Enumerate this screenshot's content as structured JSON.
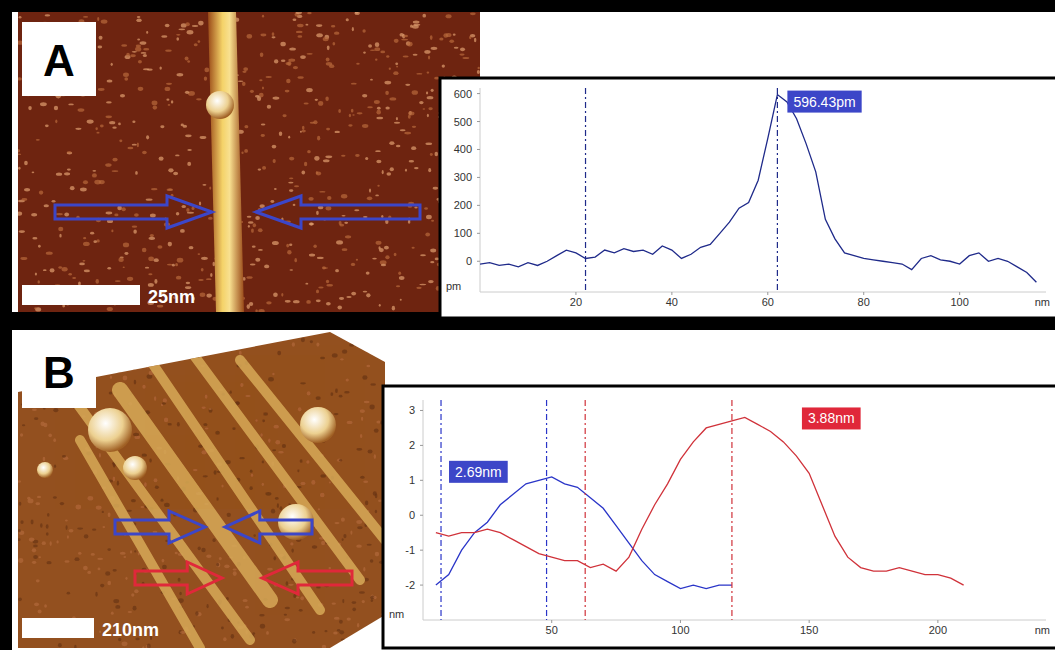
{
  "chart_data": [
    {
      "type": "line",
      "panel": "A",
      "scale_bar": "25nm",
      "x_label": "nm",
      "y_label": "pm",
      "xlim": [
        0,
        118
      ],
      "ylim": [
        -110,
        620
      ],
      "xticks": [
        20,
        40,
        60,
        80,
        100
      ],
      "yticks": [
        0,
        100,
        200,
        300,
        400,
        500,
        600
      ],
      "grid": false,
      "series": [
        {
          "color": "#1f2a8a",
          "annotation": "596.43pm",
          "annotation_color": "#3c46c8",
          "cursors": [
            22,
            62
          ],
          "x": [
            0,
            2,
            4,
            6,
            8,
            10,
            12,
            14,
            16,
            18,
            20,
            22,
            24,
            26,
            28,
            30,
            32,
            34,
            36,
            38,
            40,
            42,
            44,
            46,
            48,
            50,
            52,
            54,
            56,
            58,
            60,
            62,
            64,
            66,
            68,
            70,
            72,
            74,
            76,
            78,
            80,
            82,
            84,
            86,
            88,
            90,
            92,
            94,
            96,
            98,
            100,
            102,
            104,
            106,
            108,
            110,
            112,
            114,
            116
          ],
          "values": [
            -10,
            -5,
            -15,
            -10,
            -20,
            -5,
            -15,
            0,
            20,
            40,
            30,
            10,
            15,
            40,
            30,
            45,
            35,
            40,
            25,
            55,
            40,
            10,
            25,
            50,
            60,
            100,
            140,
            190,
            210,
            290,
            440,
            596.43,
            570,
            510,
            420,
            320,
            150,
            80,
            30,
            20,
            10,
            5,
            0,
            -5,
            -10,
            -30,
            10,
            20,
            5,
            0,
            -10,
            20,
            30,
            0,
            10,
            0,
            -20,
            -40,
            -75
          ]
        }
      ]
    },
    {
      "type": "line",
      "panel": "B",
      "scale_bar": "210nm",
      "x_label": "nm",
      "y_label": "nm",
      "xlim": [
        0,
        242
      ],
      "ylim": [
        -3,
        3.3
      ],
      "xticks": [
        50,
        100,
        150,
        200
      ],
      "yticks": [
        -2,
        -1,
        0,
        1,
        2,
        3
      ],
      "grid": false,
      "series": [
        {
          "color": "#2a35c8",
          "annotation": "2.69nm",
          "annotation_color": "#3c46c8",
          "cursors": [
            7,
            48
          ],
          "x": [
            5,
            10,
            15,
            20,
            25,
            30,
            35,
            40,
            45,
            50,
            55,
            60,
            65,
            70,
            75,
            80,
            85,
            90,
            95,
            100,
            105,
            110,
            115,
            120
          ],
          "values": [
            -2.0,
            -1.7,
            -1.0,
            -0.5,
            -0.2,
            0.3,
            0.6,
            0.9,
            1.0,
            1.1,
            0.9,
            0.8,
            0.5,
            0.2,
            -0.3,
            -0.8,
            -1.3,
            -1.7,
            -1.9,
            -2.1,
            -2.0,
            -2.1,
            -2.0,
            -2.0
          ]
        },
        {
          "color": "#d0323a",
          "annotation": "3.88nm",
          "annotation_color": "#e0283a",
          "cursors": [
            63,
            120
          ],
          "x": [
            5,
            10,
            15,
            20,
            25,
            30,
            35,
            40,
            45,
            50,
            55,
            60,
            65,
            70,
            75,
            80,
            85,
            90,
            95,
            100,
            105,
            110,
            115,
            120,
            125,
            130,
            135,
            140,
            145,
            150,
            155,
            160,
            165,
            170,
            175,
            180,
            185,
            190,
            195,
            200,
            205,
            210
          ],
          "values": [
            -0.5,
            -0.6,
            -0.5,
            -0.5,
            -0.4,
            -0.5,
            -0.7,
            -0.9,
            -1.1,
            -1.2,
            -1.3,
            -1.3,
            -1.5,
            -1.4,
            -1.6,
            -1.2,
            -0.4,
            0.3,
            0.9,
            1.6,
            2.1,
            2.5,
            2.6,
            2.7,
            2.8,
            2.6,
            2.4,
            2.1,
            1.7,
            1.2,
            0.3,
            -0.6,
            -1.2,
            -1.5,
            -1.6,
            -1.6,
            -1.5,
            -1.6,
            -1.7,
            -1.7,
            -1.8,
            -2.0
          ]
        }
      ]
    }
  ]
}
